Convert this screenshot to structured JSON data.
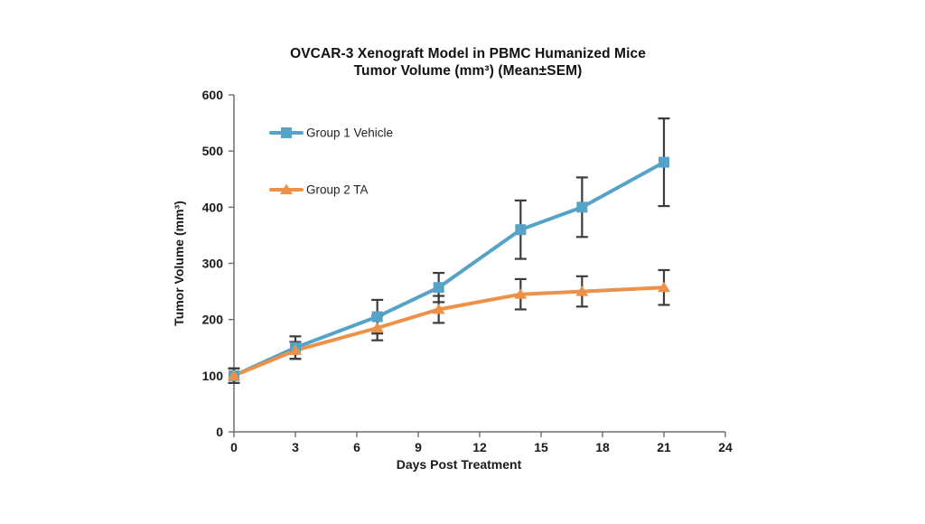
{
  "chart_data": {
    "type": "line",
    "title": "OVCAR-3 Xenograft Model in PBMC Humanized Mice",
    "subtitle": "Tumor Volume (mm³) (Mean±SEM)",
    "xlabel": "Days Post Treatment",
    "ylabel": "Tumor Volume (mm³)",
    "x": [
      0,
      3,
      7,
      10,
      14,
      17,
      21
    ],
    "series": [
      {
        "name": "Group 1 Vehicle",
        "marker": "square",
        "color": "#56A3C8",
        "values": [
          100,
          150,
          205,
          257,
          360,
          400,
          480
        ],
        "sem": [
          13,
          20,
          30,
          26,
          52,
          53,
          78
        ]
      },
      {
        "name": "Group 2 TA",
        "marker": "triangle",
        "color": "#EE9148",
        "values": [
          100,
          145,
          185,
          218,
          245,
          250,
          257
        ],
        "sem": [
          13,
          15,
          22,
          24,
          27,
          27,
          31
        ]
      }
    ],
    "xlim": [
      0,
      24
    ],
    "ylim": [
      0,
      600
    ],
    "xticks": [
      0,
      3,
      6,
      9,
      12,
      15,
      18,
      21,
      24
    ],
    "yticks": [
      0,
      100,
      200,
      300,
      400,
      500,
      600
    ],
    "grid": false,
    "legend_position": "inside-top-left",
    "error_bar_color": "#3C3C3C",
    "axis_color": "#6E6E6E",
    "text_color": "#111111"
  }
}
